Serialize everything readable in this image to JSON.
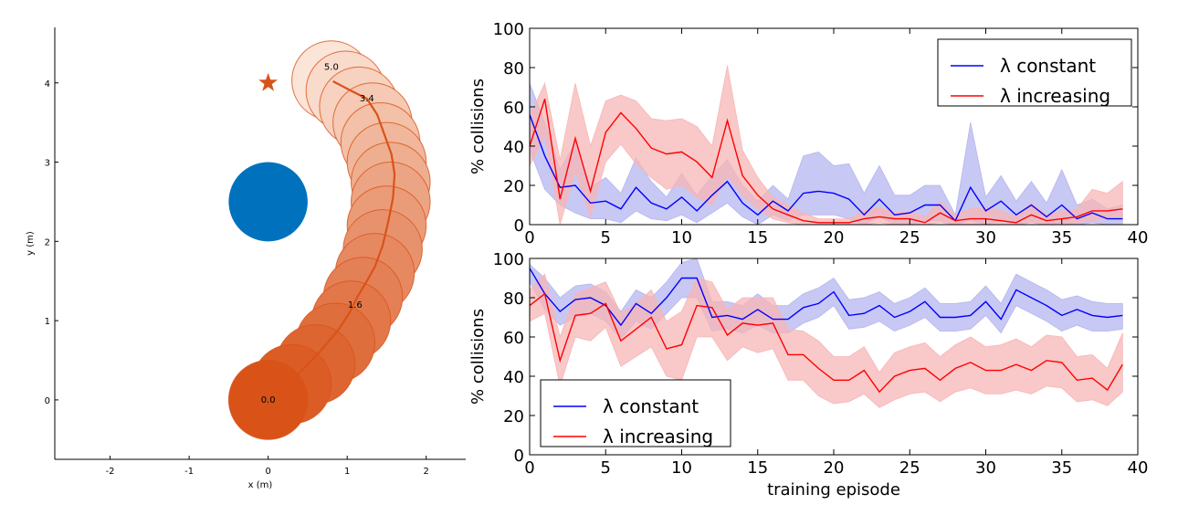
{
  "chart_data": [
    {
      "type": "scatter",
      "title": "",
      "xlabel": "x (m)",
      "ylabel": "y (m)",
      "xlim": [
        -2.7,
        2.5
      ],
      "ylim": [
        -0.75,
        4.7
      ],
      "xticks": [
        -2,
        -1,
        0,
        1,
        2
      ],
      "yticks": [
        0,
        1,
        2,
        3,
        4
      ],
      "colors": {
        "robot_dark": "#d95319",
        "robot_light": "#fbe4d8",
        "obstacle": "#0072bd",
        "goal": "#d95319"
      },
      "obstacle": {
        "center": [
          0,
          2.5
        ],
        "radius": 0.5
      },
      "goal": [
        0,
        4
      ],
      "trajectory": [
        [
          0,
          0
        ],
        [
          0.15,
          0.12
        ],
        [
          0.3,
          0.25
        ],
        [
          0.45,
          0.4
        ],
        [
          0.6,
          0.55
        ],
        [
          0.75,
          0.72
        ],
        [
          0.9,
          0.9
        ],
        [
          1.03,
          1.1
        ],
        [
          1.13,
          1.3
        ],
        [
          1.25,
          1.5
        ],
        [
          1.35,
          1.68
        ],
        [
          1.45,
          1.95
        ],
        [
          1.52,
          2.25
        ],
        [
          1.58,
          2.55
        ],
        [
          1.6,
          2.85
        ],
        [
          1.56,
          3.1
        ],
        [
          1.47,
          3.35
        ],
        [
          1.38,
          3.6
        ],
        [
          1.25,
          3.8
        ],
        [
          1.05,
          3.9
        ],
        [
          0.82,
          4.02
        ]
      ],
      "robot_positions": [
        [
          0,
          0
        ],
        [
          0.3,
          0.2
        ],
        [
          0.6,
          0.45
        ],
        [
          0.85,
          0.72
        ],
        [
          1.05,
          1.0
        ],
        [
          1.2,
          1.3
        ],
        [
          1.35,
          1.6
        ],
        [
          1.45,
          1.9
        ],
        [
          1.5,
          2.2
        ],
        [
          1.55,
          2.5
        ],
        [
          1.55,
          2.75
        ],
        [
          1.5,
          3.0
        ],
        [
          1.42,
          3.25
        ],
        [
          1.32,
          3.5
        ],
        [
          1.15,
          3.7
        ],
        [
          0.98,
          3.9
        ],
        [
          0.8,
          4.03
        ]
      ],
      "robot_radius": 0.5,
      "time_labels": [
        {
          "pos": [
            0,
            0
          ],
          "text": "0.0"
        },
        {
          "pos": [
            1.1,
            1.2
          ],
          "text": "1.6"
        },
        {
          "pos": [
            1.25,
            3.8
          ],
          "text": "3.4"
        },
        {
          "pos": [
            0.8,
            4.2
          ],
          "text": "5.0"
        }
      ]
    },
    {
      "type": "line",
      "title": "",
      "xlabel": "",
      "ylabel": "% collisions",
      "xlim": [
        0,
        40
      ],
      "ylim": [
        0,
        100
      ],
      "xticks": [
        0,
        5,
        10,
        15,
        20,
        25,
        30,
        35,
        40
      ],
      "yticks": [
        0,
        20,
        40,
        60,
        80,
        100
      ],
      "legend_position": "top-right",
      "series": [
        {
          "name": "λ constant",
          "color": "#0000ff",
          "band_color": "#b5b5f0",
          "values": [
            56,
            35,
            19,
            20,
            11,
            12,
            8,
            19,
            11,
            8,
            14,
            7,
            15,
            22,
            11,
            5,
            12,
            7,
            16,
            17,
            16,
            13,
            5,
            13,
            5,
            6,
            10,
            10,
            2,
            19,
            7,
            12,
            5,
            10,
            4,
            10,
            3,
            6,
            3,
            3
          ],
          "lower": [
            38,
            18,
            10,
            6,
            3,
            3,
            1,
            7,
            3,
            2,
            5,
            1,
            6,
            11,
            4,
            0,
            5,
            2,
            5,
            5,
            5,
            3,
            0,
            4,
            0,
            0,
            2,
            2,
            0,
            2,
            0,
            2,
            0,
            1,
            0,
            1,
            0,
            1,
            0,
            0
          ],
          "upper": [
            72,
            52,
            28,
            42,
            19,
            24,
            16,
            34,
            22,
            14,
            26,
            15,
            25,
            33,
            20,
            12,
            20,
            13,
            35,
            37,
            30,
            31,
            16,
            30,
            15,
            15,
            20,
            20,
            5,
            52,
            14,
            25,
            12,
            22,
            11,
            28,
            10,
            13,
            8,
            10
          ]
        },
        {
          "name": "λ increasing",
          "color": "#ff0000",
          "band_color": "#f7b6b6",
          "values": [
            40,
            64,
            13,
            44,
            17,
            47,
            57,
            49,
            39,
            36,
            37,
            32,
            24,
            53,
            25,
            15,
            8,
            5,
            2,
            1,
            1,
            1,
            3,
            4,
            3,
            3,
            1,
            6,
            2,
            3,
            3,
            2,
            1,
            5,
            2,
            3,
            4,
            7,
            7,
            8
          ],
          "lower": [
            30,
            45,
            0,
            27,
            4,
            32,
            41,
            31,
            24,
            18,
            20,
            14,
            10,
            25,
            15,
            8,
            3,
            1,
            0,
            0,
            0,
            0,
            0,
            1,
            0,
            0,
            0,
            1,
            0,
            0,
            0,
            0,
            0,
            1,
            0,
            0,
            1,
            2,
            3,
            3
          ],
          "upper": [
            55,
            72,
            33,
            72,
            40,
            63,
            66,
            63,
            54,
            53,
            54,
            50,
            40,
            81,
            38,
            24,
            14,
            10,
            6,
            3,
            3,
            3,
            7,
            9,
            6,
            7,
            4,
            12,
            5,
            8,
            9,
            7,
            4,
            11,
            5,
            7,
            8,
            18,
            16,
            22
          ]
        }
      ]
    },
    {
      "type": "line",
      "title": "",
      "xlabel": "training episode",
      "ylabel": "% collisions",
      "xlim": [
        0,
        40
      ],
      "ylim": [
        0,
        100
      ],
      "xticks": [
        0,
        5,
        10,
        15,
        20,
        25,
        30,
        35,
        40
      ],
      "yticks": [
        0,
        20,
        40,
        60,
        80,
        100
      ],
      "legend_position": "bottom-left",
      "series": [
        {
          "name": "λ constant",
          "color": "#0000ff",
          "band_color": "#b5b5f0",
          "values": [
            95,
            82,
            73,
            79,
            80,
            76,
            66,
            77,
            72,
            80,
            90,
            90,
            70,
            71,
            69,
            74,
            69,
            69,
            75,
            77,
            83,
            71,
            72,
            76,
            70,
            73,
            78,
            70,
            70,
            71,
            78,
            69,
            84,
            80,
            76,
            71,
            74,
            71,
            70,
            71
          ],
          "lower": [
            88,
            74,
            66,
            70,
            72,
            68,
            59,
            68,
            64,
            72,
            80,
            80,
            63,
            64,
            62,
            66,
            62,
            62,
            67,
            70,
            76,
            64,
            65,
            68,
            63,
            66,
            70,
            63,
            63,
            64,
            71,
            62,
            76,
            72,
            68,
            63,
            66,
            63,
            63,
            64
          ],
          "upper": [
            97,
            90,
            80,
            86,
            87,
            83,
            73,
            84,
            80,
            88,
            98,
            100,
            78,
            78,
            76,
            82,
            76,
            76,
            82,
            85,
            90,
            79,
            80,
            83,
            77,
            80,
            85,
            77,
            77,
            78,
            86,
            77,
            92,
            88,
            84,
            79,
            81,
            78,
            77,
            77
          ]
        },
        {
          "name": "λ increasing",
          "color": "#ff0000",
          "band_color": "#f7b6b6",
          "values": [
            76,
            82,
            48,
            71,
            72,
            77,
            58,
            64,
            70,
            54,
            56,
            76,
            75,
            61,
            67,
            66,
            67,
            51,
            51,
            44,
            38,
            38,
            43,
            32,
            40,
            43,
            44,
            38,
            44,
            47,
            43,
            43,
            46,
            43,
            48,
            47,
            38,
            39,
            33,
            46
          ],
          "lower": [
            68,
            72,
            35,
            60,
            58,
            65,
            45,
            50,
            55,
            40,
            38,
            60,
            60,
            48,
            55,
            52,
            54,
            38,
            38,
            30,
            26,
            27,
            31,
            24,
            28,
            31,
            32,
            27,
            32,
            34,
            31,
            31,
            33,
            31,
            35,
            34,
            27,
            28,
            25,
            32
          ],
          "upper": [
            84,
            92,
            60,
            82,
            85,
            88,
            72,
            77,
            84,
            68,
            73,
            90,
            88,
            74,
            80,
            80,
            80,
            64,
            63,
            58,
            50,
            50,
            55,
            42,
            52,
            55,
            57,
            50,
            56,
            60,
            55,
            56,
            59,
            55,
            61,
            60,
            50,
            51,
            44,
            62
          ]
        }
      ]
    }
  ]
}
